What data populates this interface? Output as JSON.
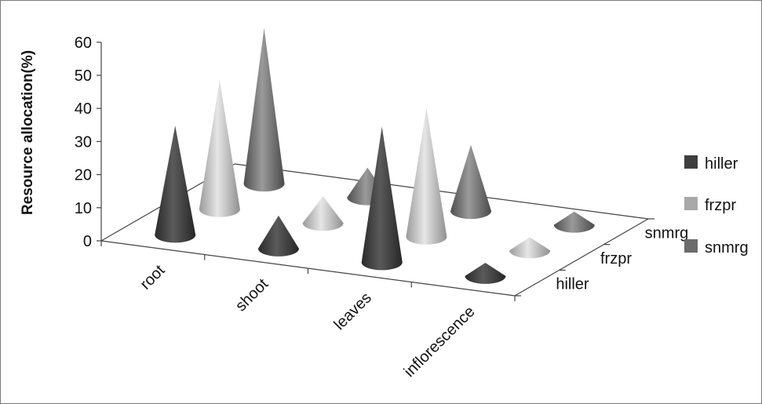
{
  "chart_data": {
    "type": "3d-cone",
    "ylabel": "Resource allocation(%)",
    "yticks": [
      0,
      10,
      20,
      30,
      40,
      50,
      60
    ],
    "ylim": [
      0,
      60
    ],
    "categories": [
      "root",
      "shoot",
      "leaves",
      "inflorescence"
    ],
    "depth_labels": [
      "hiller",
      "frzpr",
      "snmrg"
    ],
    "series": [
      {
        "name": "hiller",
        "color": "#3e3e3e",
        "values": [
          33,
          10,
          41,
          4
        ]
      },
      {
        "name": "frzpr",
        "color": "#a9a9a9",
        "values": [
          39,
          8,
          39,
          4
        ]
      },
      {
        "name": "snmrg",
        "color": "#6b6b6b",
        "values": [
          47,
          9,
          20,
          4
        ]
      }
    ],
    "legend": {
      "position": "right",
      "items": [
        "hiller",
        "frzpr",
        "snmrg"
      ]
    },
    "grid": false
  }
}
